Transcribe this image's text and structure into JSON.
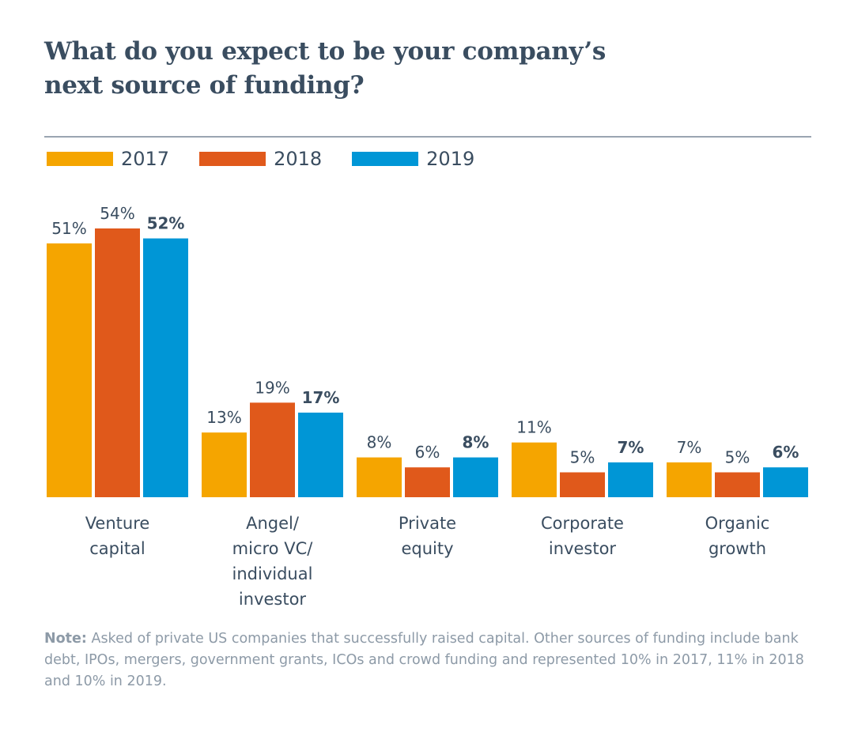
{
  "title_lines": [
    "What do you expect to be your company’s",
    "next source of funding?"
  ],
  "legend": [
    {
      "label": "2017",
      "color": "#f5a500"
    },
    {
      "label": "2018",
      "color": "#e0591b"
    },
    {
      "label": "2019",
      "color": "#0096d6"
    }
  ],
  "note": {
    "label": "Note:",
    "text": " Asked of private US companies that successfully raised capital. Other sources of funding include bank debt, IPOs, mergers, government grants, ICOs and crowd funding and represented 10% in 2017, 11% in 2018 and 10% in 2019."
  },
  "chart_data": {
    "type": "bar",
    "title": "What do you expect to be your company’s next source of funding?",
    "categories": [
      [
        "Venture",
        "capital"
      ],
      [
        "Angel/",
        "micro VC/",
        "individual",
        "investor"
      ],
      [
        "Private",
        "equity"
      ],
      [
        "Corporate",
        "investor"
      ],
      [
        "Organic",
        "growth"
      ]
    ],
    "series": [
      {
        "name": "2017",
        "color": "#f5a500",
        "values": [
          51,
          13,
          8,
          11,
          7
        ],
        "labels": [
          "51%",
          "13%",
          "8%",
          "11%",
          "7%"
        ],
        "bold": false
      },
      {
        "name": "2018",
        "color": "#e0591b",
        "values": [
          54,
          19,
          6,
          5,
          5
        ],
        "labels": [
          "54%",
          "19%",
          "6%",
          "5%",
          "5%"
        ],
        "bold": false
      },
      {
        "name": "2019",
        "color": "#0096d6",
        "values": [
          52,
          17,
          8,
          7,
          6
        ],
        "labels": [
          "52%",
          "17%",
          "8%",
          "7%",
          "6%"
        ],
        "bold": true
      }
    ],
    "unit": "%",
    "ylim": [
      0,
      54
    ],
    "grid": false,
    "legend_position": "top-left"
  }
}
